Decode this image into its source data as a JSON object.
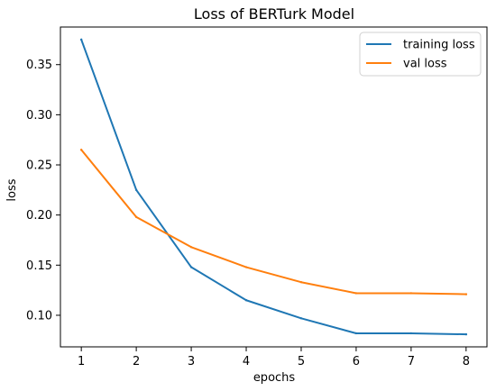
{
  "chart_data": {
    "type": "line",
    "title": "Loss of BERTurk Model",
    "xlabel": "epochs",
    "ylabel": "loss",
    "x": [
      1,
      2,
      3,
      4,
      5,
      6,
      7,
      8
    ],
    "x_ticks": [
      "1",
      "2",
      "3",
      "4",
      "5",
      "6",
      "7",
      "8"
    ],
    "y_ticks": [
      "0.10",
      "0.15",
      "0.20",
      "0.25",
      "0.30",
      "0.35"
    ],
    "xlim": [
      0.62,
      8.38
    ],
    "ylim": [
      0.0685,
      0.3875
    ],
    "grid": false,
    "legend_position": "upper right",
    "series": [
      {
        "name": "training loss",
        "color": "#1f77b4",
        "values": [
          0.375,
          0.225,
          0.148,
          0.115,
          0.097,
          0.082,
          0.082,
          0.081
        ]
      },
      {
        "name": "val loss",
        "color": "#ff7f0e",
        "values": [
          0.265,
          0.198,
          0.168,
          0.148,
          0.133,
          0.122,
          0.122,
          0.121
        ]
      }
    ]
  }
}
